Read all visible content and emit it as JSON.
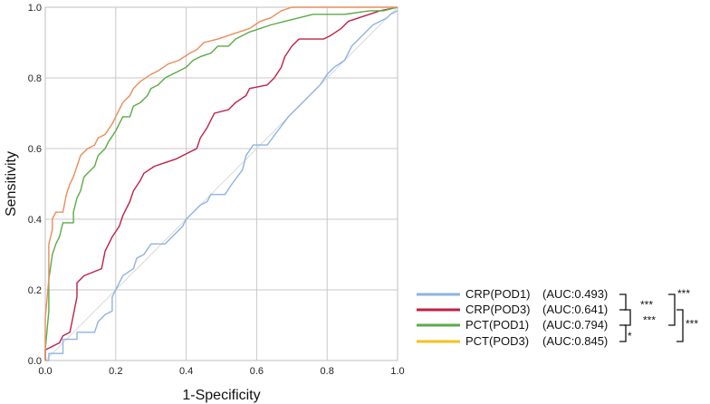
{
  "chart_data": {
    "type": "line",
    "title": "",
    "xlabel": "1-Specificity",
    "ylabel": "Sensitivity",
    "xlim": [
      0,
      1
    ],
    "ylim": [
      0,
      1
    ],
    "xticks": [
      "0.0",
      "0.2",
      "0.4",
      "0.6",
      "0.8",
      "1.0"
    ],
    "yticks": [
      "0.0",
      "0.2",
      "0.4",
      "0.6",
      "0.8",
      "1.0"
    ],
    "grid": true,
    "legend_position": "bottom-right",
    "series": [
      {
        "name": "CRP(POD1)",
        "auc_label": "(AUC:0.493)",
        "color": "#8fb3e3",
        "points": [
          [
            0,
            0
          ],
          [
            0.01,
            0
          ],
          [
            0.01,
            0.02
          ],
          [
            0.05,
            0.02
          ],
          [
            0.05,
            0.06
          ],
          [
            0.09,
            0.06
          ],
          [
            0.09,
            0.08
          ],
          [
            0.14,
            0.08
          ],
          [
            0.15,
            0.11
          ],
          [
            0.17,
            0.13
          ],
          [
            0.19,
            0.14
          ],
          [
            0.19,
            0.18
          ],
          [
            0.2,
            0.2
          ],
          [
            0.21,
            0.22
          ],
          [
            0.22,
            0.24
          ],
          [
            0.25,
            0.26
          ],
          [
            0.26,
            0.29
          ],
          [
            0.28,
            0.3
          ],
          [
            0.3,
            0.33
          ],
          [
            0.34,
            0.33
          ],
          [
            0.37,
            0.36
          ],
          [
            0.39,
            0.38
          ],
          [
            0.4,
            0.4
          ],
          [
            0.42,
            0.42
          ],
          [
            0.44,
            0.44
          ],
          [
            0.46,
            0.45
          ],
          [
            0.47,
            0.47
          ],
          [
            0.51,
            0.47
          ],
          [
            0.53,
            0.5
          ],
          [
            0.56,
            0.54
          ],
          [
            0.57,
            0.58
          ],
          [
            0.59,
            0.61
          ],
          [
            0.63,
            0.61
          ],
          [
            0.66,
            0.65
          ],
          [
            0.69,
            0.69
          ],
          [
            0.72,
            0.72
          ],
          [
            0.75,
            0.75
          ],
          [
            0.78,
            0.78
          ],
          [
            0.8,
            0.81
          ],
          [
            0.82,
            0.83
          ],
          [
            0.85,
            0.85
          ],
          [
            0.87,
            0.89
          ],
          [
            0.89,
            0.91
          ],
          [
            0.91,
            0.93
          ],
          [
            0.93,
            0.95
          ],
          [
            0.95,
            0.96
          ],
          [
            0.97,
            0.97
          ],
          [
            0.98,
            0.98
          ],
          [
            1.0,
            0.99
          ]
        ]
      },
      {
        "name": "CRP(POD3)",
        "auc_label": "(AUC:0.641)",
        "color": "#c02048",
        "points": [
          [
            0,
            0
          ],
          [
            0,
            0.03
          ],
          [
            0.02,
            0.04
          ],
          [
            0.04,
            0.05
          ],
          [
            0.05,
            0.07
          ],
          [
            0.07,
            0.08
          ],
          [
            0.08,
            0.13
          ],
          [
            0.09,
            0.18
          ],
          [
            0.09,
            0.22
          ],
          [
            0.11,
            0.24
          ],
          [
            0.16,
            0.26
          ],
          [
            0.17,
            0.31
          ],
          [
            0.18,
            0.33
          ],
          [
            0.19,
            0.35
          ],
          [
            0.21,
            0.38
          ],
          [
            0.22,
            0.41
          ],
          [
            0.24,
            0.45
          ],
          [
            0.25,
            0.48
          ],
          [
            0.27,
            0.51
          ],
          [
            0.28,
            0.53
          ],
          [
            0.31,
            0.55
          ],
          [
            0.34,
            0.56
          ],
          [
            0.37,
            0.57
          ],
          [
            0.41,
            0.59
          ],
          [
            0.43,
            0.6
          ],
          [
            0.44,
            0.63
          ],
          [
            0.46,
            0.66
          ],
          [
            0.47,
            0.68
          ],
          [
            0.48,
            0.7
          ],
          [
            0.52,
            0.71
          ],
          [
            0.54,
            0.73
          ],
          [
            0.57,
            0.75
          ],
          [
            0.58,
            0.77
          ],
          [
            0.63,
            0.78
          ],
          [
            0.65,
            0.8
          ],
          [
            0.67,
            0.83
          ],
          [
            0.68,
            0.86
          ],
          [
            0.7,
            0.89
          ],
          [
            0.72,
            0.91
          ],
          [
            0.79,
            0.91
          ],
          [
            0.81,
            0.92
          ],
          [
            0.84,
            0.94
          ],
          [
            0.86,
            0.96
          ],
          [
            0.89,
            0.97
          ],
          [
            0.92,
            0.98
          ],
          [
            0.95,
            0.99
          ],
          [
            1.0,
            1.0
          ]
        ]
      },
      {
        "name": "PCT(POD1)",
        "auc_label": "(AUC:0.794)",
        "color": "#5aab46",
        "points": [
          [
            0,
            0
          ],
          [
            0,
            0.03
          ],
          [
            0.01,
            0.14
          ],
          [
            0.01,
            0.23
          ],
          [
            0.02,
            0.3
          ],
          [
            0.03,
            0.33
          ],
          [
            0.04,
            0.35
          ],
          [
            0.05,
            0.39
          ],
          [
            0.08,
            0.39
          ],
          [
            0.08,
            0.42
          ],
          [
            0.09,
            0.46
          ],
          [
            0.1,
            0.48
          ],
          [
            0.11,
            0.52
          ],
          [
            0.12,
            0.53
          ],
          [
            0.14,
            0.55
          ],
          [
            0.15,
            0.58
          ],
          [
            0.17,
            0.6
          ],
          [
            0.18,
            0.62
          ],
          [
            0.2,
            0.65
          ],
          [
            0.21,
            0.67
          ],
          [
            0.22,
            0.69
          ],
          [
            0.24,
            0.69
          ],
          [
            0.25,
            0.72
          ],
          [
            0.27,
            0.73
          ],
          [
            0.29,
            0.75
          ],
          [
            0.3,
            0.77
          ],
          [
            0.32,
            0.78
          ],
          [
            0.34,
            0.8
          ],
          [
            0.36,
            0.81
          ],
          [
            0.38,
            0.82
          ],
          [
            0.4,
            0.83
          ],
          [
            0.42,
            0.85
          ],
          [
            0.44,
            0.86
          ],
          [
            0.47,
            0.87
          ],
          [
            0.49,
            0.89
          ],
          [
            0.52,
            0.89
          ],
          [
            0.54,
            0.91
          ],
          [
            0.56,
            0.92
          ],
          [
            0.58,
            0.93
          ],
          [
            0.61,
            0.94
          ],
          [
            0.64,
            0.95
          ],
          [
            0.68,
            0.96
          ],
          [
            0.72,
            0.97
          ],
          [
            0.76,
            0.98
          ],
          [
            0.85,
            0.98
          ],
          [
            0.92,
            0.99
          ],
          [
            0.96,
            0.99
          ],
          [
            1.0,
            1.0
          ]
        ]
      },
      {
        "name": "PCT(POD3)",
        "auc_label": "(AUC:0.845)",
        "color": "#f4c31a",
        "line_color": "#ea8c5a",
        "points": [
          [
            0,
            0
          ],
          [
            0,
            0.04
          ],
          [
            0,
            0.12
          ],
          [
            0.01,
            0.23
          ],
          [
            0.01,
            0.33
          ],
          [
            0.02,
            0.37
          ],
          [
            0.02,
            0.4
          ],
          [
            0.03,
            0.42
          ],
          [
            0.05,
            0.42
          ],
          [
            0.06,
            0.47
          ],
          [
            0.07,
            0.5
          ],
          [
            0.08,
            0.52
          ],
          [
            0.09,
            0.55
          ],
          [
            0.1,
            0.58
          ],
          [
            0.12,
            0.6
          ],
          [
            0.14,
            0.61
          ],
          [
            0.15,
            0.63
          ],
          [
            0.17,
            0.64
          ],
          [
            0.19,
            0.67
          ],
          [
            0.2,
            0.69
          ],
          [
            0.21,
            0.71
          ],
          [
            0.22,
            0.73
          ],
          [
            0.24,
            0.75
          ],
          [
            0.25,
            0.77
          ],
          [
            0.27,
            0.79
          ],
          [
            0.3,
            0.81
          ],
          [
            0.32,
            0.82
          ],
          [
            0.35,
            0.84
          ],
          [
            0.38,
            0.85
          ],
          [
            0.41,
            0.87
          ],
          [
            0.43,
            0.88
          ],
          [
            0.45,
            0.9
          ],
          [
            0.49,
            0.91
          ],
          [
            0.52,
            0.92
          ],
          [
            0.55,
            0.93
          ],
          [
            0.58,
            0.94
          ],
          [
            0.61,
            0.96
          ],
          [
            0.64,
            0.97
          ],
          [
            0.67,
            0.99
          ],
          [
            0.7,
            1.0
          ],
          [
            1.0,
            1.0
          ]
        ]
      }
    ],
    "significance": {
      "pairs_inner": [
        {
          "between": [
            "CRP(POD1)",
            "CRP(POD3)"
          ],
          "label": "***"
        },
        {
          "between": [
            "CRP(POD3)",
            "PCT(POD1)"
          ],
          "label": "***"
        },
        {
          "between": [
            "PCT(POD1)",
            "PCT(POD3)"
          ],
          "label": "*"
        }
      ],
      "pairs_outer": [
        {
          "between": [
            "CRP(POD1)",
            "PCT(POD1)"
          ],
          "label": "***"
        },
        {
          "between": [
            "CRP(POD3)",
            "PCT(POD3)"
          ],
          "label": "***"
        }
      ]
    }
  }
}
